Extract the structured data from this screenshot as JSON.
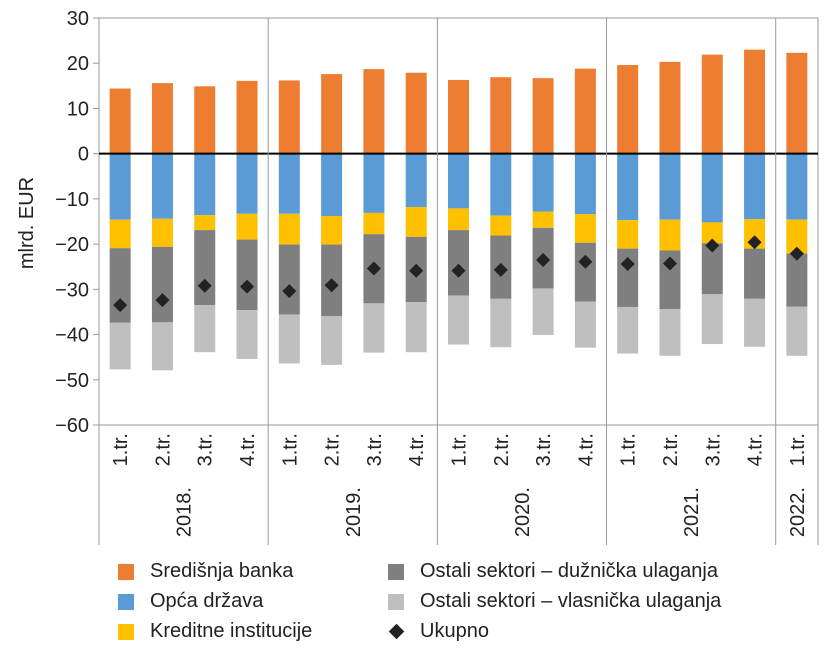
{
  "chart_data": {
    "type": "bar",
    "ylabel": "mlrd. EUR",
    "ylim": [
      -60,
      30
    ],
    "yticks": [
      30,
      20,
      10,
      0,
      -10,
      -20,
      -30,
      -40,
      -50,
      -60
    ],
    "grid": false,
    "legend_position": "bottom",
    "categories": [
      "1.tr.",
      "2.tr.",
      "3.tr.",
      "4.tr.",
      "1.tr.",
      "2.tr.",
      "3.tr.",
      "4.tr.",
      "1.tr.",
      "2.tr.",
      "3.tr.",
      "4.tr.",
      "1.tr.",
      "2.tr.",
      "3.tr.",
      "4.tr.",
      "1.tr."
    ],
    "groups": [
      {
        "label": "2018.",
        "size": 4
      },
      {
        "label": "2019.",
        "size": 4
      },
      {
        "label": "2020.",
        "size": 4
      },
      {
        "label": "2021.",
        "size": 4
      },
      {
        "label": "2022.",
        "size": 1
      }
    ],
    "series": [
      {
        "name": "Središnja banka",
        "kind": "bar",
        "color": "#ED7D31",
        "values": [
          14.4,
          15.6,
          14.9,
          16.1,
          16.2,
          17.6,
          18.7,
          17.9,
          16.3,
          16.9,
          16.7,
          18.8,
          19.6,
          20.3,
          21.9,
          23.0,
          22.3
        ]
      },
      {
        "name": "Opća država",
        "kind": "bar",
        "color": "#5B9BD5",
        "values": [
          -14.6,
          -14.4,
          -13.6,
          -13.3,
          -13.3,
          -13.8,
          -13.1,
          -11.8,
          -12.1,
          -13.7,
          -12.8,
          -13.4,
          -14.7,
          -14.6,
          -15.2,
          -14.5,
          -14.6
        ]
      },
      {
        "name": "Kreditne institucije",
        "kind": "bar",
        "color": "#FFC000",
        "values": [
          -6.3,
          -6.2,
          -3.3,
          -5.7,
          -6.8,
          -6.3,
          -4.7,
          -6.6,
          -4.8,
          -4.4,
          -3.6,
          -6.3,
          -6.3,
          -6.8,
          -4.6,
          -6.5,
          -7.5
        ]
      },
      {
        "name": "Ostali sektori – dužnička ulaganja",
        "kind": "bar",
        "color": "#7F7F7F",
        "values": [
          -16.5,
          -16.7,
          -16.6,
          -15.6,
          -15.5,
          -15.8,
          -15.3,
          -14.4,
          -14.5,
          -14.0,
          -13.4,
          -13.0,
          -12.9,
          -13.0,
          -11.3,
          -11.1,
          -11.7
        ]
      },
      {
        "name": "Ostali sektori – vlasnička ulaganja",
        "kind": "bar",
        "color": "#BFBFBF",
        "values": [
          -10.3,
          -10.6,
          -10.4,
          -10.8,
          -10.8,
          -10.8,
          -10.9,
          -11.1,
          -10.8,
          -10.7,
          -10.3,
          -10.2,
          -10.3,
          -10.3,
          -11.0,
          -10.6,
          -10.9
        ]
      },
      {
        "name": "Ukupno",
        "kind": "marker",
        "color": "#222222",
        "values": [
          -33.5,
          -32.4,
          -29.2,
          -29.4,
          -30.4,
          -29.1,
          -25.4,
          -25.9,
          -25.9,
          -25.7,
          -23.5,
          -23.9,
          -24.4,
          -24.3,
          -20.3,
          -19.6,
          -22.1
        ]
      }
    ]
  }
}
